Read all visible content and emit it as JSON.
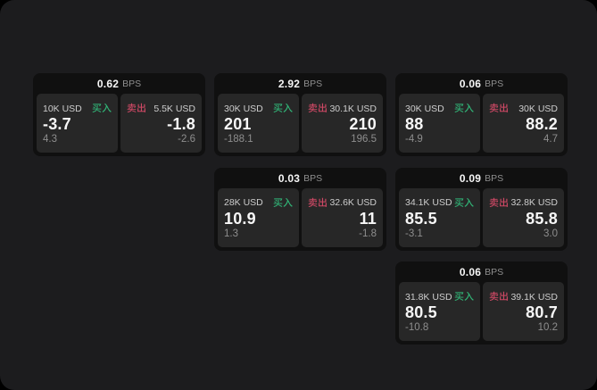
{
  "app": {
    "name": "bps-quote-board",
    "unit_label": "BPS"
  },
  "colors": {
    "page_bg": "#000000",
    "panel_bg": "#1c1c1e",
    "card_bg": "#101010",
    "tile_bg": "#272727",
    "buy_green": "#31b577",
    "sell_red": "#cc4864",
    "value_white": "#f7f7f7",
    "amount_gray": "#cdcdcd",
    "sub_gray": "#8e8e8e",
    "unit_gray": "#8e8e8e"
  },
  "labels": {
    "buy": "买入",
    "sell": "卖出"
  },
  "cards": [
    {
      "bps": "0.62",
      "buy": {
        "amount": "10K USD",
        "value": "-3.7",
        "sub": "4.3"
      },
      "sell": {
        "amount": "5.5K USD",
        "value": "-1.8",
        "sub": "-2.6"
      },
      "row": 1,
      "col": 1
    },
    {
      "bps": "2.92",
      "buy": {
        "amount": "30K USD",
        "value": "201",
        "sub": "-188.1"
      },
      "sell": {
        "amount": "30.1K USD",
        "value": "210",
        "sub": "196.5"
      },
      "row": 1,
      "col": 2
    },
    {
      "bps": "0.06",
      "buy": {
        "amount": "30K USD",
        "value": "88",
        "sub": "-4.9"
      },
      "sell": {
        "amount": "30K USD",
        "value": "88.2",
        "sub": "4.7"
      },
      "row": 1,
      "col": 3
    },
    {
      "bps": "0.03",
      "buy": {
        "amount": "28K USD",
        "value": "10.9",
        "sub": "1.3"
      },
      "sell": {
        "amount": "32.6K USD",
        "value": "11",
        "sub": "-1.8"
      },
      "row": 2,
      "col": 2
    },
    {
      "bps": "0.09",
      "buy": {
        "amount": "34.1K USD",
        "value": "85.5",
        "sub": "-3.1"
      },
      "sell": {
        "amount": "32.8K USD",
        "value": "85.8",
        "sub": "3.0"
      },
      "row": 2,
      "col": 3
    },
    {
      "bps": "0.06",
      "buy": {
        "amount": "31.8K USD",
        "value": "80.5",
        "sub": "-10.8"
      },
      "sell": {
        "amount": "39.1K USD",
        "value": "80.7",
        "sub": "10.2"
      },
      "row": 3,
      "col": 3
    }
  ]
}
